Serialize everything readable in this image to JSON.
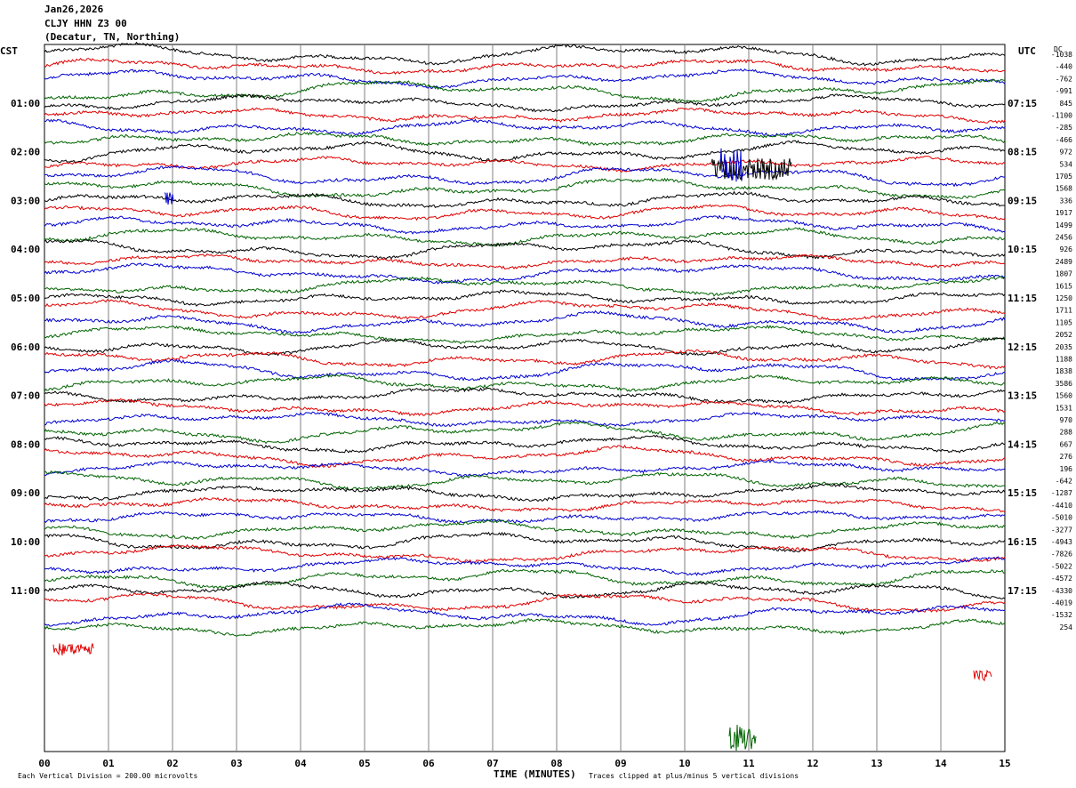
{
  "header": {
    "date": "Jan26,2026",
    "station": "CLJY HHN Z3 00",
    "location": "(Decatur, TN, Northing)"
  },
  "left_axis_label": "CST",
  "right_axis_label": "UTC",
  "dc_label": "DC",
  "footer": {
    "scale": "Each Vertical Division =  200.00 microvolts",
    "xlabel": "TIME (MINUTES)",
    "clip": "Traces clipped at plus/minus 5 vertical divisions"
  },
  "colors": {
    "black": "#000000",
    "red": "#e00000",
    "blue": "#0000d0",
    "green": "#006400",
    "grid": "#808080"
  },
  "chart_data": {
    "type": "line",
    "title": "Jan26,2026 CLJY HHN Z3 00 (Decatur, TN, Northing)",
    "xlabel": "TIME (MINUTES)",
    "xlim": [
      0,
      15
    ],
    "x_ticks": [
      "00",
      "01",
      "02",
      "03",
      "04",
      "05",
      "06",
      "07",
      "08",
      "09",
      "10",
      "11",
      "12",
      "13",
      "14",
      "15"
    ],
    "traces_per_hour": 4,
    "trace_minutes": 15,
    "trace_count": 48,
    "trace_color_cycle": [
      "black",
      "red",
      "blue",
      "green"
    ],
    "left_labels": [
      {
        "trace": 4,
        "text": "01:00"
      },
      {
        "trace": 8,
        "text": "02:00"
      },
      {
        "trace": 12,
        "text": "03:00"
      },
      {
        "trace": 16,
        "text": "04:00"
      },
      {
        "trace": 20,
        "text": "05:00"
      },
      {
        "trace": 24,
        "text": "06:00"
      },
      {
        "trace": 28,
        "text": "07:00"
      },
      {
        "trace": 32,
        "text": "08:00"
      },
      {
        "trace": 36,
        "text": "09:00"
      },
      {
        "trace": 40,
        "text": "10:00"
      },
      {
        "trace": 44,
        "text": "11:00"
      }
    ],
    "right_labels": [
      {
        "trace": 4,
        "text": "07:15"
      },
      {
        "trace": 8,
        "text": "08:15"
      },
      {
        "trace": 12,
        "text": "09:15"
      },
      {
        "trace": 16,
        "text": "10:15"
      },
      {
        "trace": 20,
        "text": "11:15"
      },
      {
        "trace": 24,
        "text": "12:15"
      },
      {
        "trace": 28,
        "text": "13:15"
      },
      {
        "trace": 32,
        "text": "14:15"
      },
      {
        "trace": 36,
        "text": "15:15"
      },
      {
        "trace": 40,
        "text": "16:15"
      },
      {
        "trace": 44,
        "text": "17:15"
      }
    ],
    "dc_offsets": [
      "-1038",
      "-440",
      "-762",
      "-991",
      "845",
      "-1100",
      "-285",
      "-466",
      "972",
      "534",
      "1705",
      "1568",
      "336",
      "1917",
      "1499",
      "2456",
      "926",
      "2489",
      "1807",
      "1615",
      "1250",
      "1711",
      "1105",
      "2052",
      "2035",
      "1188",
      "1838",
      "3586",
      "1560",
      "1531",
      "970",
      "288",
      "667",
      "276",
      "196",
      "-642",
      "-1287",
      "-4410",
      "-5010",
      "-3277",
      "-4943",
      "-7826",
      "-5022",
      "-4572",
      "-4330",
      "-4019",
      "-1532",
      "254"
    ]
  }
}
